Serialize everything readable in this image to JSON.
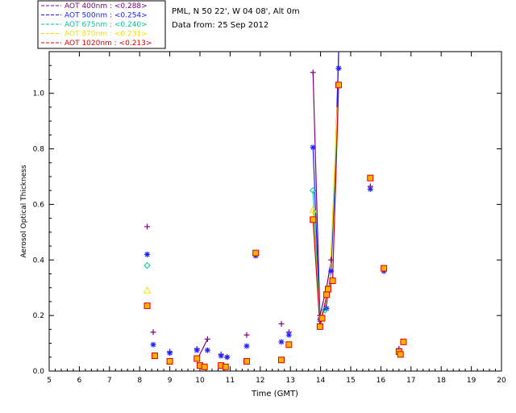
{
  "chart_data": {
    "type": "scatter",
    "title": "",
    "xlabel": "Time (GMT)",
    "ylabel": "Aerosol Optical Thickness",
    "xlim": [
      5,
      20
    ],
    "ylim": [
      0.0,
      1.15
    ],
    "x_ticks": [
      "5",
      "6",
      "7",
      "8",
      "9",
      "10",
      "11",
      "12",
      "13",
      "14",
      "15",
      "16",
      "17",
      "18",
      "19",
      "20"
    ],
    "y_ticks": [
      "0.0",
      "0.2",
      "0.4",
      "0.6",
      "0.8",
      "1.0"
    ],
    "legend_position": "top-left-outside",
    "annotations": [
      "PML, N 50 22', W 04 08', Alt 0m",
      "Data from: 25 Sep 2012"
    ],
    "series": [
      {
        "name": "AOT  400nm : <0.288>",
        "color": "#800080",
        "marker": "plus",
        "points": [
          [
            8.25,
            0.52
          ],
          [
            8.45,
            0.14
          ],
          [
            9.0,
            0.07
          ],
          [
            9.9,
            0.08
          ],
          [
            10.25,
            0.115
          ],
          [
            10.7,
            0.06
          ],
          [
            10.9,
            0.05
          ],
          [
            11.55,
            0.13
          ],
          [
            11.85,
            0.42
          ],
          [
            12.7,
            0.17
          ],
          [
            12.95,
            0.14
          ],
          [
            13.75,
            1.075
          ],
          [
            13.98,
            0.2
          ],
          [
            14.35,
            0.4
          ],
          [
            14.6,
            1.09
          ],
          [
            15.65,
            0.665
          ],
          [
            16.1,
            0.36
          ],
          [
            16.6,
            0.08
          ]
        ],
        "lines": [
          [
            [
              13.75,
              1.075
            ],
            [
              13.98,
              0.2
            ],
            [
              14.2,
              0.3
            ],
            [
              14.35,
              0.4
            ],
            [
              14.5,
              0.8
            ],
            [
              14.6,
              1.15
            ]
          ],
          [
            [
              9.95,
              0.05
            ],
            [
              10.25,
              0.115
            ]
          ]
        ]
      },
      {
        "name": "AOT  500nm : <0.254>",
        "color": "#2020ff",
        "marker": "star",
        "points": [
          [
            8.25,
            0.42
          ],
          [
            8.45,
            0.095
          ],
          [
            9.0,
            0.065
          ],
          [
            9.9,
            0.075
          ],
          [
            10.25,
            0.075
          ],
          [
            10.7,
            0.055
          ],
          [
            10.9,
            0.05
          ],
          [
            11.55,
            0.09
          ],
          [
            11.85,
            0.415
          ],
          [
            12.7,
            0.105
          ],
          [
            12.95,
            0.13
          ],
          [
            13.75,
            0.805
          ],
          [
            13.98,
            0.185
          ],
          [
            14.2,
            0.225
          ],
          [
            14.35,
            0.36
          ],
          [
            14.6,
            1.09
          ],
          [
            15.65,
            0.655
          ],
          [
            16.1,
            0.36
          ],
          [
            16.6,
            0.075
          ]
        ],
        "lines": [
          [
            [
              13.75,
              0.805
            ],
            [
              13.98,
              0.185
            ],
            [
              14.2,
              0.24
            ],
            [
              14.35,
              0.36
            ],
            [
              14.5,
              0.75
            ],
            [
              14.6,
              1.15
            ]
          ]
        ]
      },
      {
        "name": "AOT  675nm : <0.240>",
        "color": "#00c896",
        "marker": "diamond",
        "points": [
          [
            8.25,
            0.38
          ],
          [
            13.75,
            0.65
          ],
          [
            14.15,
            0.22
          ]
        ],
        "lines": [
          [
            [
              13.75,
              0.65
            ],
            [
              13.98,
              0.18
            ],
            [
              14.3,
              0.3
            ],
            [
              14.55,
              0.9
            ]
          ]
        ]
      },
      {
        "name": "AOT  870nm : <0.231>",
        "color": "#f0e000",
        "marker": "triangle",
        "points": [
          [
            8.25,
            0.29
          ],
          [
            13.75,
            0.58
          ]
        ],
        "lines": [
          [
            [
              13.75,
              0.58
            ],
            [
              13.98,
              0.17
            ],
            [
              14.3,
              0.3
            ],
            [
              14.55,
              0.95
            ]
          ]
        ]
      },
      {
        "name": "AOT 1020nm : <0.213>",
        "color": "#e00000",
        "marker": "square",
        "points": [
          [
            8.25,
            0.235
          ],
          [
            8.5,
            0.055
          ],
          [
            9.0,
            0.035
          ],
          [
            9.9,
            0.045
          ],
          [
            10.0,
            0.02
          ],
          [
            10.15,
            0.015
          ],
          [
            10.7,
            0.02
          ],
          [
            10.85,
            0.015
          ],
          [
            11.55,
            0.035
          ],
          [
            11.85,
            0.425
          ],
          [
            12.7,
            0.04
          ],
          [
            12.95,
            0.095
          ],
          [
            13.75,
            0.545
          ],
          [
            13.98,
            0.16
          ],
          [
            14.05,
            0.19
          ],
          [
            14.2,
            0.275
          ],
          [
            14.25,
            0.295
          ],
          [
            14.4,
            0.325
          ],
          [
            14.6,
            1.03
          ],
          [
            15.65,
            0.695
          ],
          [
            16.1,
            0.37
          ],
          [
            16.6,
            0.07
          ],
          [
            16.65,
            0.06
          ],
          [
            16.75,
            0.105
          ]
        ],
        "lines": [
          [
            [
              13.75,
              0.545
            ],
            [
              13.98,
              0.16
            ],
            [
              14.2,
              0.27
            ],
            [
              14.4,
              0.33
            ],
            [
              14.55,
              0.85
            ],
            [
              14.6,
              1.03
            ]
          ]
        ]
      }
    ]
  }
}
